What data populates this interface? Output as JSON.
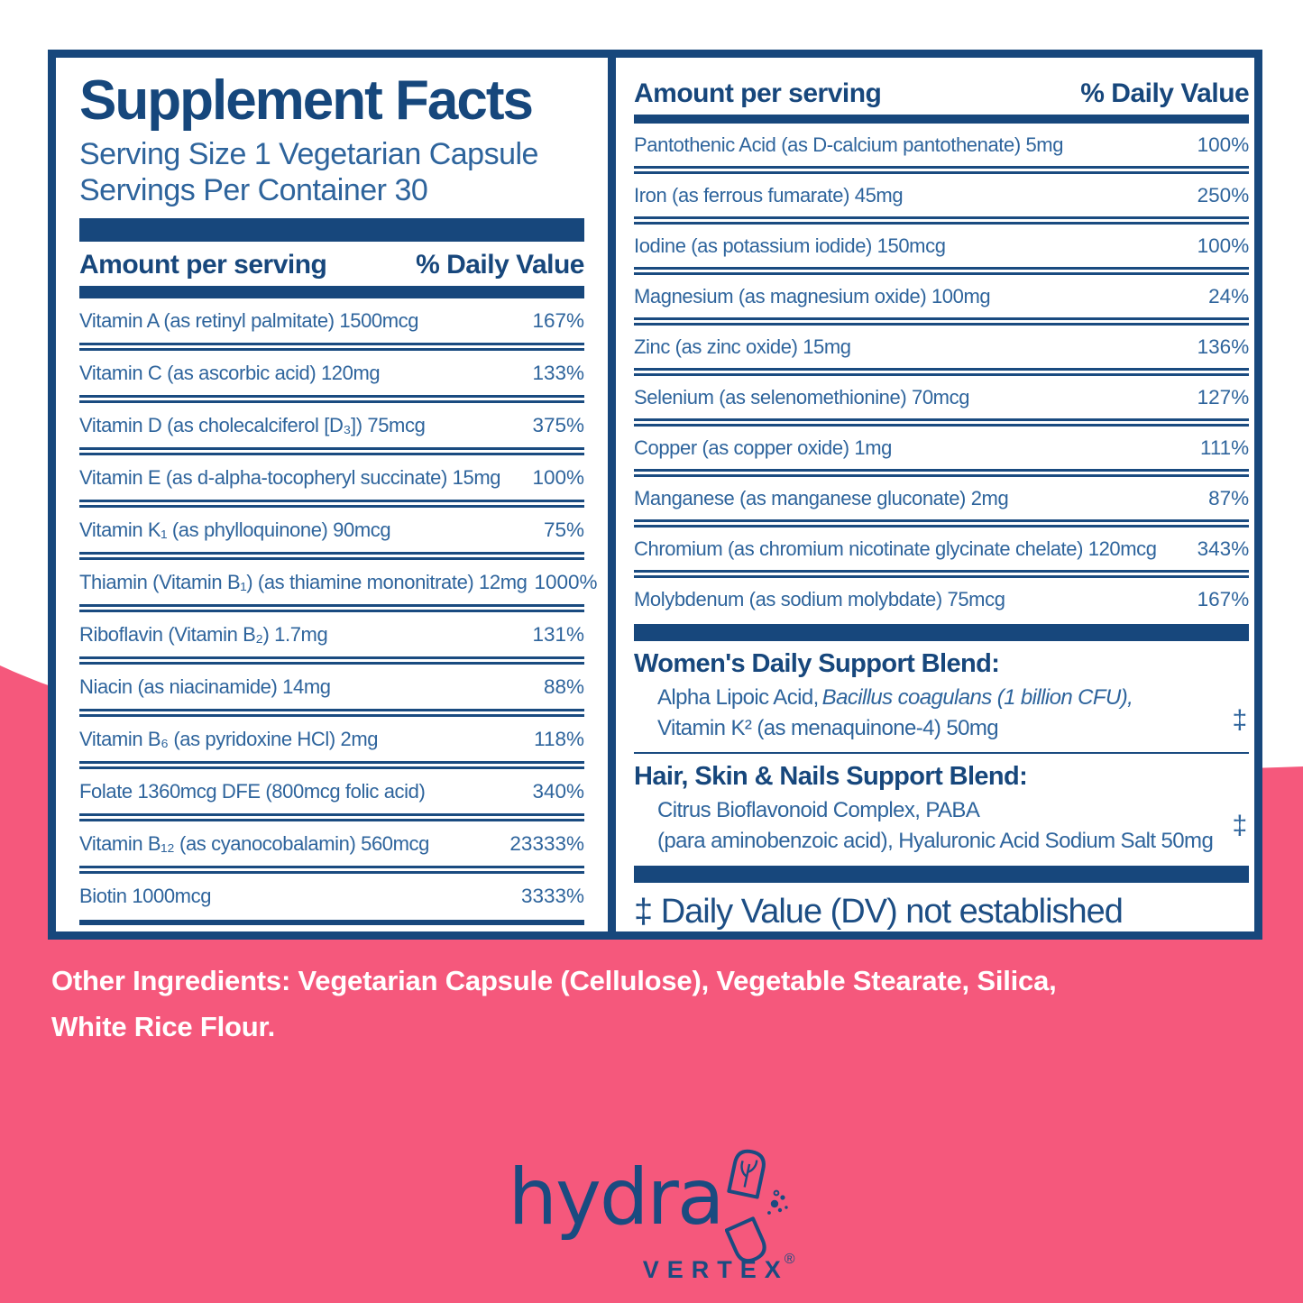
{
  "colors": {
    "navy": "#17477C",
    "row_blue": "#2E649C",
    "pink": "#F5587C",
    "white": "#FFFFFF"
  },
  "label": {
    "title": "Supplement Facts",
    "serving_size": "Serving Size 1 Vegetarian Capsule",
    "servings_per_container": "Servings Per Container 30",
    "header": {
      "amount": "Amount per serving",
      "dv": "% Daily Value"
    },
    "left_rows": [
      {
        "name": "Vitamin A (as retinyl palmitate) 1500mcg",
        "dv": "167%"
      },
      {
        "name": "Vitamin C (as ascorbic acid) 120mg",
        "dv": "133%"
      },
      {
        "name": "Vitamin D (as cholecalciferol [D₃]) 75mcg",
        "dv": "375%"
      },
      {
        "name": "Vitamin E (as d-alpha-tocopheryl succinate) 15mg",
        "dv": "100%"
      },
      {
        "name": "Vitamin K₁ (as phylloquinone) 90mcg",
        "dv": "75%"
      },
      {
        "name": "Thiamin (Vitamin B₁) (as thiamine mononitrate) 12mg",
        "dv": "1000%"
      },
      {
        "name": "Riboflavin (Vitamin B₂) 1.7mg",
        "dv": "131%"
      },
      {
        "name": "Niacin (as niacinamide) 14mg",
        "dv": "88%"
      },
      {
        "name": "Vitamin B₆ (as pyridoxine HCl) 2mg",
        "dv": "118%"
      },
      {
        "name": "Folate 1360mcg DFE (800mcg folic acid)",
        "dv": "340%"
      },
      {
        "name": "Vitamin B₁₂ (as cyanocobalamin) 560mcg",
        "dv": "23333%"
      },
      {
        "name": "Biotin 1000mcg",
        "dv": "3333%"
      }
    ],
    "right_rows": [
      {
        "name": "Pantothenic Acid (as D-calcium pantothenate) 5mg",
        "dv": "100%"
      },
      {
        "name": "Iron (as ferrous fumarate) 45mg",
        "dv": "250%"
      },
      {
        "name": "Iodine (as potassium iodide) 150mcg",
        "dv": "100%"
      },
      {
        "name": "Magnesium (as magnesium oxide) 100mg",
        "dv": "24%"
      },
      {
        "name": "Zinc (as zinc oxide) 15mg",
        "dv": "136%"
      },
      {
        "name": "Selenium (as selenomethionine) 70mcg",
        "dv": "127%"
      },
      {
        "name": "Copper (as copper oxide) 1mg",
        "dv": "111%"
      },
      {
        "name": "Manganese (as manganese gluconate) 2mg",
        "dv": "87%"
      },
      {
        "name": "Chromium (as chromium nicotinate glycinate chelate) 120mcg",
        "dv": "343%"
      },
      {
        "name": "Molybdenum (as sodium molybdate) 75mcg",
        "dv": "167%"
      }
    ],
    "blends": [
      {
        "heading": "Women's Daily Support Blend:",
        "line1_pre": "Alpha Lipoic Acid,",
        "line1_italic": "Bacillus coagulans (1 billion CFU),",
        "line2": "Vitamin K² (as menaquinone-4) 50mg",
        "dv": "‡"
      },
      {
        "heading": "Hair, Skin & Nails Support Blend:",
        "line1": "Citrus Bioflavonoid Complex, PABA",
        "line2": "(para aminobenzoic acid), Hyaluronic Acid Sodium Salt 50mg",
        "dv": "‡"
      }
    ],
    "footnote": "‡ Daily Value (DV) not established"
  },
  "other_ingredients": {
    "label": "Other Ingredients:",
    "text": " Vegetarian Capsule (Cellulose), Vegetable Stearate, Silica, White Rice Flour."
  },
  "logo": {
    "wordmark": "hydra",
    "sub_wordmark": "VERTEX",
    "registered": "®",
    "icon": "open-capsule-icon"
  }
}
